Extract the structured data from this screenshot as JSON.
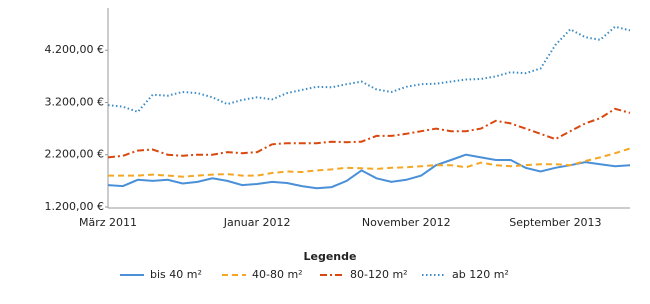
{
  "chart_data": {
    "type": "line",
    "categories": [
      "März 2011",
      null,
      null,
      null,
      null,
      null,
      null,
      null,
      null,
      null,
      "Januar 2012",
      null,
      null,
      null,
      null,
      null,
      null,
      null,
      null,
      null,
      "November 2012",
      null,
      null,
      null,
      null,
      null,
      null,
      null,
      null,
      null,
      "September 2013",
      null,
      null,
      null,
      null,
      null
    ],
    "series": [
      {
        "name": "bis 40 m²",
        "color": "#4a90d9",
        "dash": "",
        "values": [
          1620,
          1600,
          1720,
          1700,
          1720,
          1650,
          1680,
          1750,
          1700,
          1620,
          1640,
          1680,
          1660,
          1600,
          1560,
          1580,
          1700,
          1900,
          1750,
          1680,
          1720,
          1800,
          2000,
          2100,
          2200,
          2150,
          2100,
          2100,
          1950,
          1880,
          1950,
          2000,
          2060,
          2020,
          1980,
          2000
        ]
      },
      {
        "name": "40-80 m²",
        "color": "#f5a623",
        "dash": "6,4",
        "values": [
          1800,
          1800,
          1800,
          1820,
          1800,
          1780,
          1800,
          1820,
          1830,
          1800,
          1800,
          1850,
          1880,
          1870,
          1900,
          1920,
          1950,
          1940,
          1930,
          1950,
          1960,
          1980,
          2000,
          2000,
          1960,
          2050,
          2000,
          1980,
          2000,
          2020,
          2020,
          2000,
          2080,
          2150,
          2230,
          2320
        ]
      },
      {
        "name": "80-120 m²",
        "color": "#d9480f",
        "dash": "7,3,2,3",
        "values": [
          2150,
          2180,
          2280,
          2300,
          2200,
          2180,
          2200,
          2200,
          2250,
          2230,
          2250,
          2400,
          2420,
          2420,
          2420,
          2450,
          2440,
          2450,
          2560,
          2560,
          2600,
          2650,
          2700,
          2650,
          2650,
          2700,
          2850,
          2800,
          2700,
          2600,
          2500,
          2650,
          2800,
          2900,
          3080,
          3000
        ]
      },
      {
        "name": "ab 120 m²",
        "color": "#3a8bc4",
        "dash": "1.5,2.5",
        "values": [
          3150,
          3120,
          3020,
          3350,
          3330,
          3400,
          3380,
          3300,
          3170,
          3250,
          3300,
          3260,
          3380,
          3440,
          3500,
          3490,
          3550,
          3600,
          3450,
          3400,
          3500,
          3550,
          3560,
          3600,
          3640,
          3650,
          3700,
          3780,
          3760,
          3850,
          4300,
          4600,
          4450,
          4400,
          4650,
          4580
        ]
      }
    ],
    "ylim": [
      1200,
      4970
    ],
    "yticks": [
      {
        "value": 1200,
        "label": "1.200,00 €"
      },
      {
        "value": 2200,
        "label": "2.200,00 €"
      },
      {
        "value": 3200,
        "label": "3.200,00 €"
      },
      {
        "value": 4200,
        "label": "4.200,00 €"
      }
    ],
    "legend_title": "Legende"
  }
}
